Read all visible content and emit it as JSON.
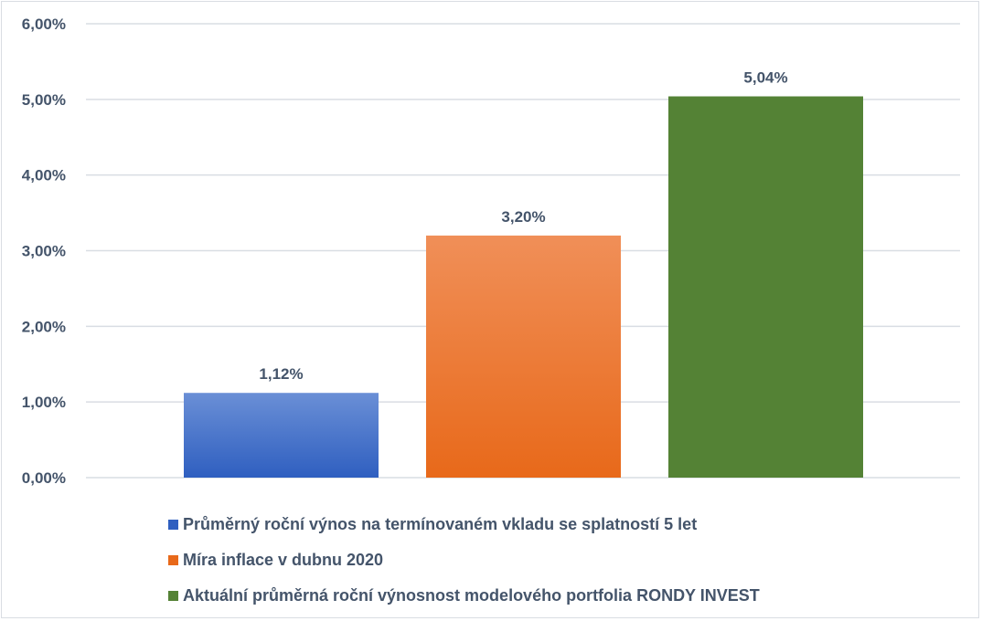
{
  "chart_data": {
    "type": "bar",
    "title": "",
    "xlabel": "",
    "ylabel": "",
    "ylim": [
      0,
      6
    ],
    "y_ticks": [
      "0,00%",
      "1,00%",
      "2,00%",
      "3,00%",
      "4,00%",
      "5,00%",
      "6,00%"
    ],
    "grid": true,
    "legend_position": "bottom",
    "series": [
      {
        "name": "Průměrný roční výnos na termínovaném vkladu se splatností 5 let",
        "value": 1.12,
        "label": "1,12%",
        "color_top": "#6a8fd6",
        "color_bottom": "#2f5fc0"
      },
      {
        "name": "Míra inflace v dubnu 2020",
        "value": 3.2,
        "label": "3,20%",
        "color_top": "#f08f58",
        "color_bottom": "#e8691a"
      },
      {
        "name": "Aktuální průměrná roční výnosnost modelového portfolia RONDY INVEST",
        "value": 5.04,
        "label": "5,04%",
        "color_top": "#548235",
        "color_bottom": "#548235"
      }
    ]
  }
}
